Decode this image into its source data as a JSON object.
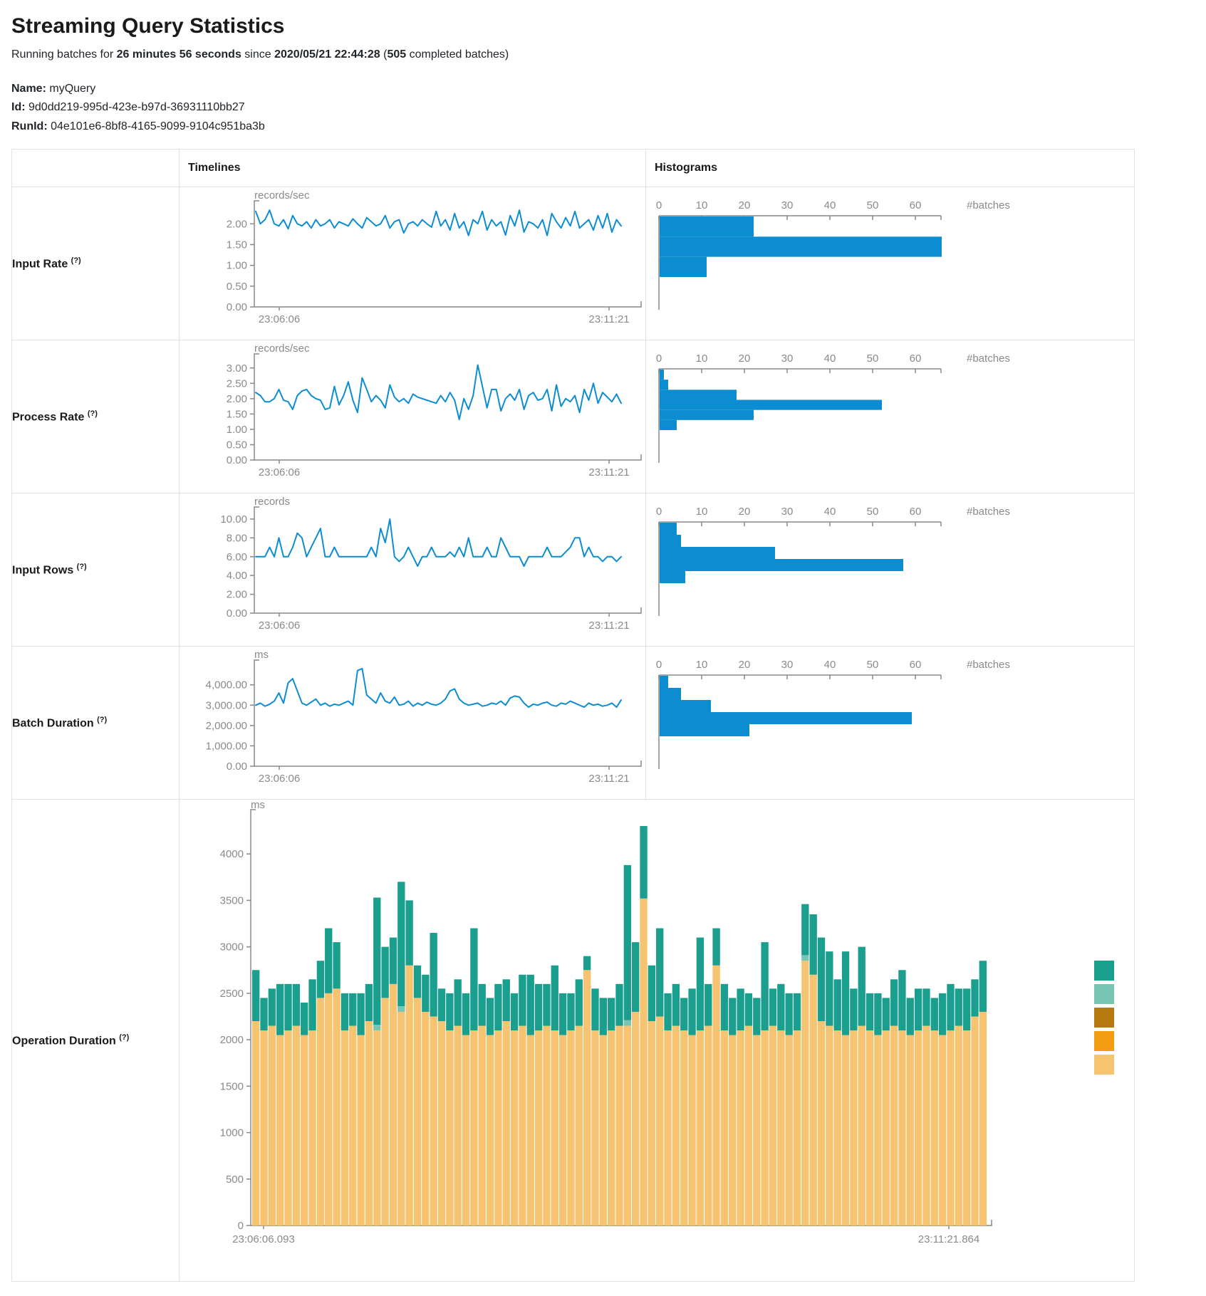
{
  "page": {
    "title": "Streaming Query Statistics",
    "subtitle": {
      "prefix": "Running batches for ",
      "duration": "26 minutes 56 seconds",
      "since_word": " since ",
      "start_time": "2020/05/21 22:44:28",
      "open": " (",
      "completed_batches": "505",
      "suffix": " completed batches)"
    },
    "name_label": "Name:",
    "name_value": "myQuery",
    "id_label": "Id:",
    "id_value": "9d0dd219-995d-423e-b97d-36931110bb27",
    "runid_label": "RunId:",
    "runid_value": "04e101e6-8bf8-4165-9099-9104c951ba3b"
  },
  "table": {
    "timelines_header": "Timelines",
    "histograms_header": "Histograms"
  },
  "colors": {
    "line_blue": "#0D8DD1",
    "hist_blue": "#0D8DD1",
    "axis_gray": "#8a8a8a",
    "axis_line": "#888888",
    "teal": "#1A9E8D",
    "light_teal": "#77C6B4",
    "dark_orange": "#B87A10",
    "orange": "#F49D12",
    "tan": "#F6C371"
  },
  "chart_data": {
    "rows": [
      {
        "label": "Input Rate",
        "help": "(?)",
        "timeline": {
          "type": "line",
          "unit": "records/sec",
          "x_start": "23:06:06",
          "x_end": "23:11:21",
          "ymax": 2.4,
          "ytick_vals": [
            2,
            1.5,
            1,
            0.5,
            0
          ],
          "ytick_labels": [
            "2.00",
            "1.50",
            "1.00",
            "0.50",
            "0.00"
          ],
          "values": [
            2.3,
            2.0,
            2.1,
            2.33,
            2.0,
            1.95,
            2.1,
            1.88,
            2.2,
            2.0,
            1.95,
            2.05,
            1.9,
            2.1,
            1.95,
            2.0,
            2.1,
            1.9,
            2.05,
            2.0,
            1.95,
            2.12,
            2.0,
            1.9,
            2.15,
            2.05,
            1.95,
            2.0,
            2.2,
            1.9,
            2.05,
            2.1,
            1.78,
            2.0,
            2.05,
            1.95,
            2.1,
            2.0,
            1.92,
            2.3,
            1.95,
            2.1,
            1.85,
            2.25,
            1.9,
            2.05,
            1.72,
            2.1,
            2.0,
            2.3,
            1.85,
            2.1,
            1.95,
            2.05,
            1.73,
            2.2,
            1.95,
            2.33,
            1.8,
            2.05,
            2.0,
            1.9,
            2.1,
            1.72,
            2.25,
            2.05,
            1.9,
            2.15,
            1.95,
            2.3,
            1.9,
            2.0,
            2.1,
            1.85,
            2.2,
            1.9,
            2.25,
            1.8,
            2.1,
            1.95
          ]
        },
        "histogram": {
          "type": "bar",
          "batches_label": "#batches",
          "xticks": [
            0,
            10,
            20,
            30,
            40,
            50,
            60
          ],
          "xmax": 66,
          "values": [
            22,
            66,
            11
          ]
        }
      },
      {
        "label": "Process Rate",
        "help": "(?)",
        "timeline": {
          "type": "line",
          "unit": "records/sec",
          "x_start": "23:06:06",
          "x_end": "23:11:21",
          "ymax": 3.25,
          "ytick_vals": [
            3,
            2.5,
            2,
            1.5,
            1,
            0.5,
            0
          ],
          "ytick_labels": [
            "3.00",
            "2.50",
            "2.00",
            "1.50",
            "1.00",
            "0.50",
            "0.00"
          ],
          "values": [
            2.2,
            2.1,
            1.9,
            1.9,
            2.0,
            2.3,
            1.95,
            1.9,
            1.65,
            2.1,
            2.25,
            2.3,
            2.1,
            2.0,
            1.95,
            1.65,
            1.7,
            2.4,
            1.8,
            2.1,
            2.55,
            1.95,
            1.55,
            2.68,
            2.3,
            1.9,
            2.1,
            1.95,
            1.7,
            2.45,
            2.05,
            1.9,
            2.0,
            1.85,
            2.15,
            2.05,
            2.0,
            1.95,
            1.9,
            1.85,
            2.1,
            1.9,
            2.2,
            1.95,
            1.32,
            2.0,
            1.65,
            2.1,
            3.1,
            2.4,
            1.7,
            2.3,
            2.3,
            1.6,
            2.0,
            2.15,
            1.95,
            2.3,
            1.65,
            2.1,
            2.2,
            1.95,
            2.0,
            2.3,
            1.6,
            2.45,
            1.75,
            2.0,
            1.9,
            2.1,
            1.55,
            2.3,
            1.95,
            2.5,
            1.85,
            2.2,
            2.05,
            1.9,
            2.15,
            1.85
          ]
        },
        "histogram": {
          "type": "bar",
          "batches_label": "#batches",
          "xticks": [
            0,
            10,
            20,
            30,
            40,
            50,
            60
          ],
          "xmax": 66,
          "values": [
            1,
            2,
            18,
            52,
            22,
            4
          ]
        }
      },
      {
        "label": "Input Rows",
        "help": "(?)",
        "timeline": {
          "type": "line",
          "unit": "records",
          "x_start": "23:06:06",
          "x_end": "23:11:21",
          "ymax": 10.6,
          "ytick_vals": [
            10,
            8,
            6,
            4,
            2,
            0
          ],
          "ytick_labels": [
            "10.00",
            "8.00",
            "6.00",
            "4.00",
            "2.00",
            "0.00"
          ],
          "values": [
            6,
            6,
            6,
            7,
            6,
            8,
            6,
            6,
            7,
            8.5,
            8,
            6,
            7,
            8,
            9,
            6,
            6,
            7,
            6,
            6,
            6,
            6,
            6,
            6,
            6,
            7,
            6,
            9,
            7.5,
            10,
            6,
            5.5,
            6,
            7,
            6,
            5,
            6,
            6,
            7,
            6,
            6,
            6,
            6.5,
            6,
            7,
            6,
            8,
            6,
            6,
            6,
            7,
            6,
            6,
            8,
            7,
            6,
            6,
            6,
            5,
            6,
            6,
            6,
            6,
            7,
            6,
            6,
            6,
            6.5,
            7,
            8,
            8,
            6,
            7,
            6,
            6,
            5.5,
            6,
            6,
            5.5,
            6
          ]
        },
        "histogram": {
          "type": "bar",
          "batches_label": "#batches",
          "xticks": [
            0,
            10,
            20,
            30,
            40,
            50,
            60
          ],
          "xmax": 66,
          "values": [
            4,
            5,
            27,
            57,
            6
          ]
        }
      },
      {
        "label": "Batch Duration",
        "help": "(?)",
        "timeline": {
          "type": "line",
          "unit": "ms",
          "x_start": "23:06:06",
          "x_end": "23:11:21",
          "ymax": 4900,
          "ytick_vals": [
            4000,
            3000,
            2000,
            1000,
            0
          ],
          "ytick_labels": [
            "4,000.00",
            "3,000.00",
            "2,000.00",
            "1,000.00",
            "0.00"
          ],
          "values": [
            3000,
            3100,
            2950,
            3050,
            3200,
            3600,
            3100,
            4100,
            4300,
            3700,
            3100,
            3000,
            3150,
            3300,
            3000,
            3100,
            2950,
            3050,
            3000,
            3100,
            3200,
            3000,
            4700,
            4800,
            3500,
            3300,
            3100,
            3600,
            3200,
            3100,
            3400,
            3000,
            3050,
            3200,
            2950,
            3100,
            3000,
            3150,
            3050,
            3000,
            3100,
            3300,
            3700,
            3800,
            3300,
            3100,
            3000,
            3050,
            3100,
            2950,
            3000,
            3100,
            3050,
            3200,
            3000,
            3350,
            3450,
            3400,
            3100,
            2900,
            3050,
            3000,
            3100,
            3150,
            3000,
            2950,
            3100,
            3050,
            3200,
            3100,
            3000,
            2900,
            3100,
            3000,
            3050,
            2950,
            3000,
            3100,
            2900,
            3250
          ]
        },
        "histogram": {
          "type": "bar",
          "batches_label": "#batches",
          "xticks": [
            0,
            10,
            20,
            30,
            40,
            50,
            60
          ],
          "xmax": 66,
          "values": [
            2,
            5,
            12,
            59,
            21
          ]
        }
      }
    ],
    "operation": {
      "label": "Operation Duration",
      "help": "(?)",
      "type": "stacked-bar",
      "unit": "ms",
      "x_start": "23:06:06.093",
      "x_end": "23:11:21.864",
      "ymax": 4400,
      "ytick_vals": [
        4000,
        3500,
        3000,
        2500,
        2000,
        1500,
        1000,
        500,
        0
      ],
      "ytick_labels": [
        "4000",
        "3500",
        "3000",
        "2500",
        "2000",
        "1500",
        "1000",
        "500",
        "0"
      ],
      "segment_colors": [
        "#F6C371",
        "#77C6B4",
        "#F49D12",
        "#1A9E8D"
      ],
      "legend_colors": [
        "#1A9E8D",
        "#77C6B4",
        "#B87A10",
        "#F49D12",
        "#F6C371"
      ],
      "bars": [
        [
          2200,
          0,
          0,
          550
        ],
        [
          2100,
          0,
          0,
          350
        ],
        [
          2150,
          0,
          0,
          400
        ],
        [
          2050,
          0,
          0,
          550
        ],
        [
          2100,
          0,
          0,
          500
        ],
        [
          2150,
          0,
          0,
          450
        ],
        [
          2050,
          0,
          0,
          350
        ],
        [
          2100,
          0,
          0,
          550
        ],
        [
          2450,
          0,
          0,
          400
        ],
        [
          2500,
          0,
          0,
          700
        ],
        [
          2550,
          0,
          0,
          500
        ],
        [
          2100,
          0,
          0,
          400
        ],
        [
          2150,
          0,
          0,
          350
        ],
        [
          2050,
          0,
          0,
          450
        ],
        [
          2200,
          0,
          0,
          400
        ],
        [
          2100,
          60,
          0,
          1370
        ],
        [
          2450,
          0,
          0,
          550
        ],
        [
          2600,
          0,
          0,
          500
        ],
        [
          2300,
          60,
          0,
          1340
        ],
        [
          2800,
          0,
          0,
          700
        ],
        [
          2450,
          0,
          0,
          350
        ],
        [
          2300,
          0,
          0,
          400
        ],
        [
          2250,
          0,
          0,
          900
        ],
        [
          2200,
          0,
          0,
          350
        ],
        [
          2100,
          0,
          0,
          400
        ],
        [
          2150,
          0,
          0,
          500
        ],
        [
          2050,
          0,
          0,
          450
        ],
        [
          2100,
          0,
          0,
          1100
        ],
        [
          2150,
          0,
          0,
          450
        ],
        [
          2050,
          0,
          0,
          400
        ],
        [
          2100,
          0,
          0,
          500
        ],
        [
          2200,
          0,
          0,
          450
        ],
        [
          2100,
          0,
          0,
          400
        ],
        [
          2150,
          0,
          0,
          550
        ],
        [
          2050,
          0,
          0,
          650
        ],
        [
          2100,
          0,
          0,
          500
        ],
        [
          2150,
          0,
          0,
          450
        ],
        [
          2100,
          0,
          0,
          700
        ],
        [
          2050,
          0,
          0,
          450
        ],
        [
          2100,
          0,
          0,
          400
        ],
        [
          2150,
          0,
          0,
          500
        ],
        [
          2750,
          0,
          0,
          150
        ],
        [
          2100,
          0,
          0,
          450
        ],
        [
          2050,
          0,
          0,
          400
        ],
        [
          2100,
          0,
          0,
          350
        ],
        [
          2150,
          0,
          0,
          450
        ],
        [
          2150,
          60,
          0,
          1670
        ],
        [
          2300,
          0,
          0,
          750
        ],
        [
          3520,
          0,
          0,
          780
        ],
        [
          2200,
          0,
          0,
          600
        ],
        [
          2250,
          0,
          0,
          950
        ],
        [
          2100,
          0,
          0,
          400
        ],
        [
          2150,
          0,
          0,
          450
        ],
        [
          2100,
          0,
          0,
          350
        ],
        [
          2050,
          0,
          0,
          500
        ],
        [
          2100,
          0,
          0,
          1000
        ],
        [
          2150,
          0,
          0,
          450
        ],
        [
          2800,
          0,
          0,
          400
        ],
        [
          2100,
          0,
          0,
          500
        ],
        [
          2050,
          0,
          0,
          400
        ],
        [
          2100,
          0,
          0,
          450
        ],
        [
          2150,
          0,
          0,
          350
        ],
        [
          2050,
          0,
          0,
          400
        ],
        [
          2100,
          0,
          0,
          950
        ],
        [
          2150,
          0,
          0,
          400
        ],
        [
          2100,
          0,
          0,
          500
        ],
        [
          2050,
          0,
          0,
          450
        ],
        [
          2100,
          0,
          0,
          400
        ],
        [
          2850,
          60,
          0,
          550
        ],
        [
          2700,
          0,
          0,
          650
        ],
        [
          2200,
          0,
          0,
          900
        ],
        [
          2150,
          0,
          0,
          800
        ],
        [
          2100,
          0,
          0,
          550
        ],
        [
          2050,
          0,
          0,
          900
        ],
        [
          2100,
          0,
          0,
          450
        ],
        [
          2150,
          0,
          0,
          850
        ],
        [
          2100,
          0,
          0,
          400
        ],
        [
          2050,
          0,
          0,
          450
        ],
        [
          2100,
          0,
          0,
          350
        ],
        [
          2150,
          0,
          0,
          500
        ],
        [
          2100,
          0,
          0,
          650
        ],
        [
          2050,
          0,
          0,
          400
        ],
        [
          2100,
          0,
          0,
          450
        ],
        [
          2150,
          0,
          0,
          400
        ],
        [
          2100,
          0,
          0,
          350
        ],
        [
          2050,
          0,
          0,
          450
        ],
        [
          2100,
          0,
          0,
          500
        ],
        [
          2150,
          0,
          0,
          400
        ],
        [
          2100,
          0,
          0,
          450
        ],
        [
          2250,
          0,
          0,
          400
        ],
        [
          2300,
          0,
          0,
          550
        ]
      ]
    }
  }
}
